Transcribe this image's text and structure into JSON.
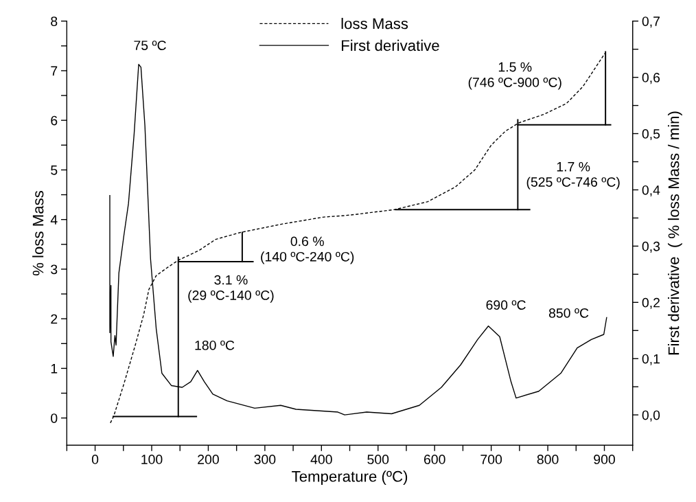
{
  "chart_data": {
    "type": "line",
    "xlabel": "Temperature (ºC)",
    "ylabel": "% loss Mass",
    "y2label": "First derivative  ( % loss Mass / min)",
    "xlim": [
      -50,
      950
    ],
    "xticks": [
      {
        "value": -50,
        "label": null
      },
      0,
      {
        "value": 50,
        "label": null
      },
      100,
      {
        "value": 150,
        "label": null
      },
      200,
      {
        "value": 250,
        "label": null
      },
      300,
      {
        "value": 350,
        "label": null
      },
      400,
      {
        "value": 450,
        "label": null
      },
      500,
      {
        "value": 550,
        "label": null
      },
      600,
      {
        "value": 650,
        "label": null
      },
      700,
      {
        "value": 750,
        "label": null
      },
      800,
      {
        "value": 850,
        "label": null
      },
      900,
      {
        "value": 950,
        "label": null
      }
    ],
    "ylim": [
      -0.55,
      8
    ],
    "yticks": [
      0,
      {
        "value": 0.5,
        "label": null
      },
      1,
      {
        "value": 1.5,
        "label": null
      },
      2,
      {
        "value": 2.5,
        "label": null
      },
      3,
      {
        "value": 3.5,
        "label": null
      },
      4,
      {
        "value": 4.5,
        "label": null
      },
      5,
      {
        "value": 5.5,
        "label": null
      },
      6,
      {
        "value": 6.5,
        "label": null
      },
      7,
      {
        "value": 7.5,
        "label": null
      },
      8
    ],
    "y2lim": [
      -0.054,
      0.7
    ],
    "y2ticks": [
      {
        "value": 0,
        "label": "0,0"
      },
      {
        "value": 0.05,
        "label": null
      },
      {
        "value": 0.1,
        "label": "0,1"
      },
      {
        "value": 0.15,
        "label": null
      },
      {
        "value": 0.2,
        "label": "0,2"
      },
      {
        "value": 0.25,
        "label": null
      },
      {
        "value": 0.3,
        "label": "0,3"
      },
      {
        "value": 0.35,
        "label": null
      },
      {
        "value": 0.4,
        "label": "0,4"
      },
      {
        "value": 0.45,
        "label": null
      },
      {
        "value": 0.5,
        "label": "0,5"
      },
      {
        "value": 0.55,
        "label": null
      },
      {
        "value": 0.6,
        "label": "0,6"
      },
      {
        "value": 0.65,
        "label": null
      },
      {
        "value": 0.7,
        "label": "0,7"
      }
    ],
    "grid": false,
    "legend": "top",
    "marker": "none",
    "series": [
      {
        "name": "loss Mass",
        "color": "#000000",
        "line_style": "dashed",
        "x": [
          27,
          33,
          51,
          71,
          86,
          95,
          108,
          125,
          147,
          184,
          213,
          257,
          331,
          404,
          441,
          458,
          529,
          588,
          637,
          671,
          700,
          725,
          749,
          793,
          833,
          862,
          901
        ],
        "values": [
          -0.1,
          0.04,
          0.69,
          1.47,
          2.09,
          2.59,
          2.87,
          3.01,
          3.18,
          3.38,
          3.6,
          3.74,
          3.91,
          4.05,
          4.08,
          4.1,
          4.2,
          4.36,
          4.66,
          5.0,
          5.5,
          5.78,
          5.95,
          6.12,
          6.34,
          6.68,
          7.35
        ]
      },
      {
        "name": "First derivative",
        "color": "#000000",
        "line_style": "solid",
        "axis": "y2",
        "x": [
          26,
          26,
          28,
          28,
          32,
          35,
          37,
          42,
          51,
          59,
          69,
          77,
          81,
          88,
          98,
          108,
          118,
          135,
          154,
          169,
          181,
          193,
          208,
          233,
          282,
          328,
          355,
          429,
          441,
          480,
          524,
          573,
          612,
          646,
          676,
          695,
          715,
          735,
          744,
          784,
          823,
          852,
          877,
          899,
          904
        ],
        "values": [
          0.39,
          0.146,
          0.23,
          0.13,
          0.104,
          0.141,
          0.124,
          0.252,
          0.32,
          0.376,
          0.5,
          0.623,
          0.618,
          0.514,
          0.277,
          0.153,
          0.074,
          0.052,
          0.049,
          0.059,
          0.079,
          0.059,
          0.037,
          0.025,
          0.012,
          0.017,
          0.01,
          0.005,
          0,
          0.005,
          0.002,
          0.017,
          0.049,
          0.089,
          0.134,
          0.158,
          0.139,
          0.059,
          0.03,
          0.042,
          0.074,
          0.119,
          0.134,
          0.143,
          0.173
        ]
      },
      {
        "color": "#000000",
        "line_style": "solid",
        "x": [
          32,
          179
        ],
        "values": [
          0.03,
          0.03
        ]
      },
      {
        "color": "#000000",
        "line_style": "solid",
        "x": [
          147,
          147
        ],
        "values": [
          0.03,
          3.24
        ]
      },
      {
        "color": "#000000",
        "line_style": "solid",
        "x": [
          147,
          279
        ],
        "values": [
          3.15,
          3.15
        ]
      },
      {
        "color": "#000000",
        "line_style": "solid",
        "x": [
          260,
          260
        ],
        "values": [
          3.15,
          3.74
        ]
      },
      {
        "color": "#000000",
        "line_style": "solid",
        "x": [
          531,
          768
        ],
        "values": [
          4.2,
          4.2
        ]
      },
      {
        "color": "#000000",
        "line_style": "solid",
        "x": [
          747,
          747
        ],
        "values": [
          4.2,
          6.01
        ]
      },
      {
        "color": "#000000",
        "line_style": "solid",
        "x": [
          747,
          911
        ],
        "values": [
          5.91,
          5.91
        ]
      },
      {
        "color": "#000000",
        "line_style": "solid",
        "x": [
          902,
          902
        ],
        "values": [
          5.91,
          7.38
        ]
      }
    ],
    "annotations": [
      "75 ºC",
      "180 ºC",
      "690 ºC",
      "850 ºC",
      "3.1 %\n(29 ºC-140 ºC)",
      "0.6 %\n(140 ºC-240 ºC)",
      "1.7 %\n(525 ºC-746 ºC)",
      "1.5 %\n(746 ºC-900 ºC)"
    ]
  }
}
